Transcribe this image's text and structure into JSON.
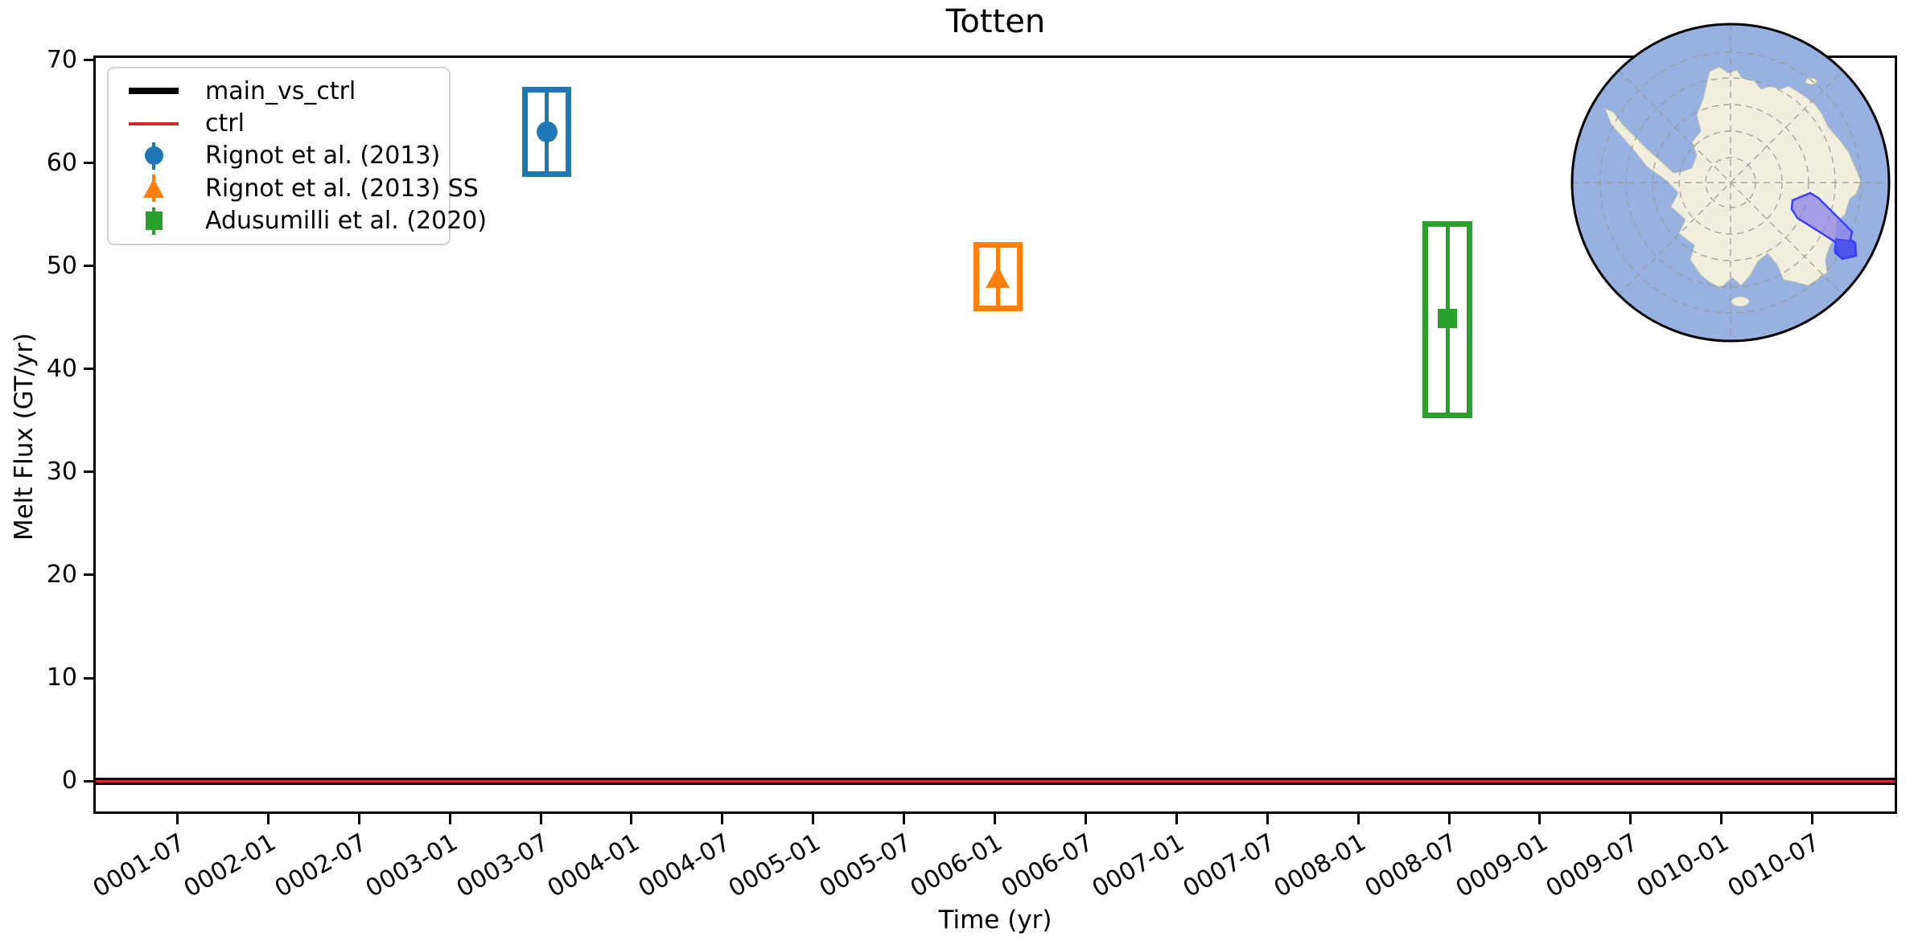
{
  "title": "Totten",
  "axes": {
    "xlabel": "Time (yr)",
    "ylabel": "Melt Flux (GT/yr)",
    "x_tick_labels": [
      "0001-07",
      "0002-01",
      "0002-07",
      "0003-01",
      "0003-07",
      "0004-01",
      "0004-07",
      "0005-01",
      "0005-07",
      "0006-01",
      "0006-07",
      "0007-01",
      "0007-07",
      "0008-01",
      "0008-07",
      "0009-01",
      "0009-07",
      "0010-01",
      "0010-07"
    ],
    "y_tick_labels": [
      "0",
      "10",
      "20",
      "30",
      "40",
      "50",
      "60",
      "70"
    ]
  },
  "legend": {
    "items": [
      {
        "label": "main_vs_ctrl",
        "marker": "thick-line",
        "color": "#000000"
      },
      {
        "label": "ctrl",
        "marker": "thin-line",
        "color": "#d62728"
      },
      {
        "label": "Rignot et al. (2013)",
        "marker": "circle",
        "color": "#1f77b4"
      },
      {
        "label": "Rignot et al. (2013) SS",
        "marker": "triangle",
        "color": "#ff7f0e"
      },
      {
        "label": "Adusumilli et al. (2020)",
        "marker": "square",
        "color": "#2ca02c"
      }
    ]
  },
  "chart_data": {
    "type": "scatter",
    "title": "Totten",
    "xlabel": "Time (yr)",
    "ylabel": "Melt Flux (GT/yr)",
    "ylim": [
      -3.2,
      70.3
    ],
    "xlim_months": [
      0.5,
      119.6
    ],
    "grid": false,
    "legend_position": "upper left",
    "x_tick_labels": [
      "0001-07",
      "0002-01",
      "0002-07",
      "0003-01",
      "0003-07",
      "0004-01",
      "0004-07",
      "0005-01",
      "0005-07",
      "0006-01",
      "0006-07",
      "0007-01",
      "0007-07",
      "0008-01",
      "0008-07",
      "0009-01",
      "0009-07",
      "0010-01",
      "0010-07"
    ],
    "y_ticks": [
      0,
      10,
      20,
      30,
      40,
      50,
      60,
      70
    ],
    "lines": [
      {
        "name": "main_vs_ctrl",
        "color": "#000000",
        "y": 0,
        "thickness_px": 9
      },
      {
        "name": "ctrl",
        "color": "#d62728",
        "y": 0,
        "thickness_px": 3
      }
    ],
    "points": [
      {
        "name": "Rignot et al. (2013)",
        "marker": "circle",
        "color": "#1f77b4",
        "x_date": "0003-08",
        "x_months": 30.4,
        "x_halfwidth_months": 1.45,
        "y": 63.0,
        "y_box": [
          58.9,
          67.1
        ]
      },
      {
        "name": "Rignot et al. (2013) SS",
        "marker": "triangle",
        "color": "#ff7f0e",
        "x_date": "0006-01",
        "x_months": 60.2,
        "x_halfwidth_months": 1.45,
        "y": 48.9,
        "y_box": [
          45.9,
          52.1
        ]
      },
      {
        "name": "Adusumilli et al. (2020)",
        "marker": "square",
        "color": "#2ca02c",
        "x_date": "0008-07",
        "x_months": 89.9,
        "x_halfwidth_months": 1.45,
        "y": 44.9,
        "y_box": [
          35.5,
          54.1
        ]
      }
    ]
  },
  "inset_map": {
    "region_highlighted": "Totten basin",
    "ocean_color": "#97b2e1",
    "land_color": "#f0eedc",
    "coast_color": "#c3c2ae",
    "graticule_color": "#9a9a9a",
    "highlight_fill": "#8b80e8",
    "highlight_stroke": "#3d3dff",
    "highlight_shelf_fill": "#4a50ea",
    "border_color": "#000000"
  }
}
